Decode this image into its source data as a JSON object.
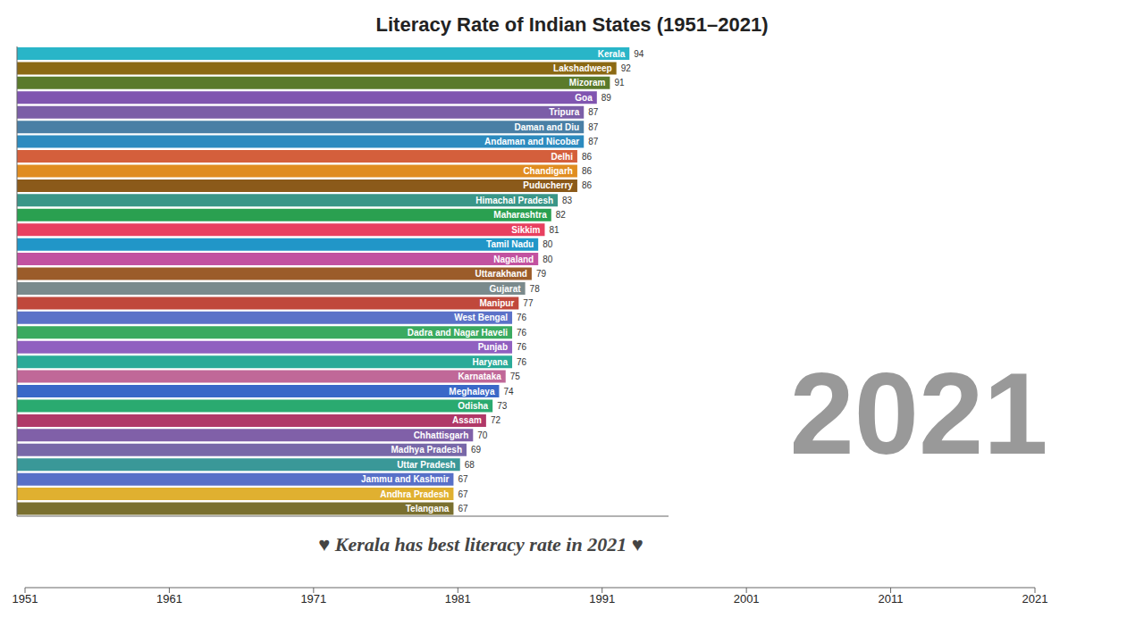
{
  "chart_data": [
    {
      "type": "bar",
      "title": "Literacy Rate of Indian States (1951–2021)",
      "subtitle": "♥  Kerala has best literacy rate in 2021  ♥",
      "annotations": [
        "2021"
      ],
      "orientation": "horizontal",
      "categories": [
        "Kerala",
        "Lakshadweep",
        "Mizoram",
        "Goa",
        "Tripura",
        "Daman and Diu",
        "Andaman and Nicobar",
        "Delhi",
        "Chandigarh",
        "Puducherry",
        "Himachal Pradesh",
        "Maharashtra",
        "Sikkim",
        "Tamil Nadu",
        "Nagaland",
        "Uttarakhand",
        "Gujarat",
        "Manipur",
        "West Bengal",
        "Dadra and Nagar Haveli",
        "Punjab",
        "Haryana",
        "Karnataka",
        "Meghalaya",
        "Odisha",
        "Assam",
        "Chhattisgarh",
        "Madhya Pradesh",
        "Uttar Pradesh",
        "Jammu and Kashmir",
        "Andhra Pradesh",
        "Telangana"
      ],
      "values": [
        94,
        92,
        91,
        89,
        87,
        87,
        87,
        86,
        86,
        86,
        83,
        82,
        81,
        80,
        80,
        79,
        78,
        77,
        76,
        76,
        76,
        76,
        75,
        74,
        73,
        72,
        70,
        69,
        68,
        67,
        67,
        67
      ],
      "colors": [
        "#29b5c8",
        "#8b6914",
        "#5a7a2b",
        "#8055b0",
        "#7b5ea7",
        "#4a7fa5",
        "#2d8bbf",
        "#d45f3c",
        "#e08c20",
        "#8b5a1a",
        "#3a9688",
        "#2aa050",
        "#e84060",
        "#2196c8",
        "#c252a0",
        "#9b5c2a",
        "#7a8a8c",
        "#c0483c",
        "#5b72c8",
        "#3aaa60",
        "#9060c0",
        "#2aaa98",
        "#c06898",
        "#3a68c8",
        "#2aaa70",
        "#b03868",
        "#8060a8",
        "#7868a8",
        "#3a9898",
        "#5870c8",
        "#e0b030",
        "#7a7030"
      ],
      "xlim": [
        0,
        100
      ],
      "data_labels": true,
      "tick_labels": false,
      "grid": false
    },
    {
      "type": "timeline",
      "xlim": [
        1951,
        2021
      ],
      "xticks": [
        1951,
        1961,
        1971,
        1981,
        1991,
        2001,
        2011,
        2021
      ]
    }
  ]
}
